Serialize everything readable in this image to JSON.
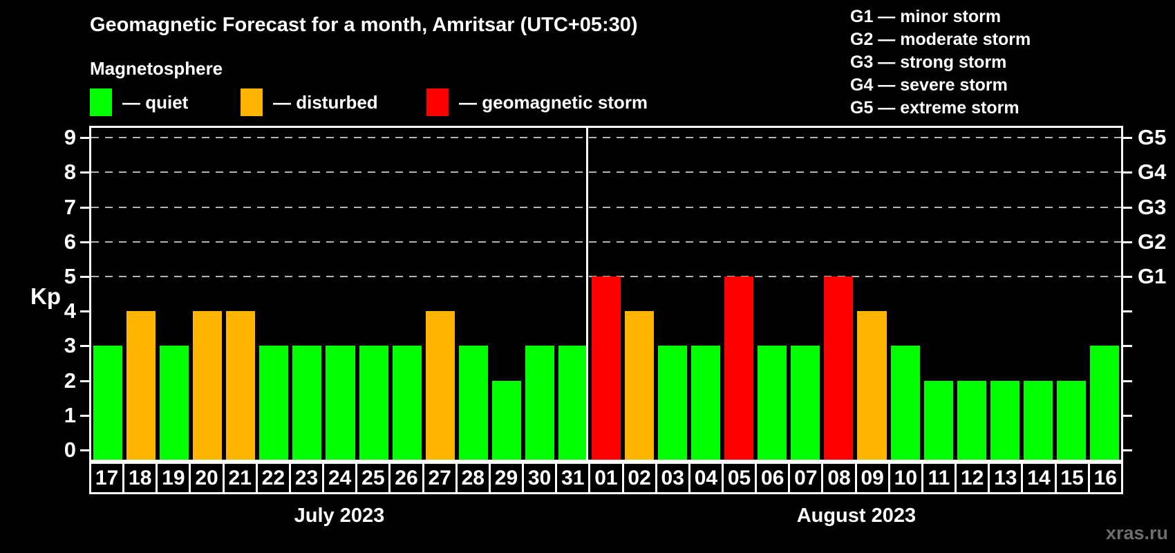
{
  "title": "Geomagnetic Forecast for a month, Amritsar (UTC+05:30)",
  "subtitle": "Magnetosphere",
  "watermark": "xras.ru",
  "legend": {
    "items": [
      {
        "key": "quiet",
        "label": "— quiet",
        "color": "#00ff00"
      },
      {
        "key": "disturbed",
        "label": "— disturbed",
        "color": "#ffb400"
      },
      {
        "key": "storm",
        "label": "— geomagnetic storm",
        "color": "#ff0000"
      }
    ]
  },
  "g_legend": {
    "lines": [
      "G1 — minor storm",
      "G2 — moderate storm",
      "G3 — strong storm",
      "G4 — severe storm",
      "G5 — extreme storm"
    ]
  },
  "chart_data": {
    "type": "bar",
    "title": "Geomagnetic Forecast for a month, Amritsar (UTC+05:30)",
    "ylabel": "Kp",
    "ylim": [
      0,
      9.35
    ],
    "yticks": [
      0,
      1,
      2,
      3,
      4,
      5,
      6,
      7,
      8,
      9
    ],
    "gridlines": [
      5,
      6,
      7,
      8,
      9
    ],
    "grid": "dashed horizontal at Kp 5-9",
    "legend_position": "top-left",
    "right_axis_labels": [
      {
        "kp": 5,
        "label": "G1"
      },
      {
        "kp": 6,
        "label": "G2"
      },
      {
        "kp": 7,
        "label": "G3"
      },
      {
        "kp": 8,
        "label": "G4"
      },
      {
        "kp": 9,
        "label": "G5"
      }
    ],
    "status_colors": {
      "quiet": "#00ff00",
      "disturbed": "#ffb400",
      "storm": "#ff0000"
    },
    "months": [
      {
        "label": "July 2023",
        "days": [
          {
            "date": "17",
            "kp": 3,
            "status": "quiet"
          },
          {
            "date": "18",
            "kp": 4,
            "status": "disturbed"
          },
          {
            "date": "19",
            "kp": 3,
            "status": "quiet"
          },
          {
            "date": "20",
            "kp": 4,
            "status": "disturbed"
          },
          {
            "date": "21",
            "kp": 4,
            "status": "disturbed"
          },
          {
            "date": "22",
            "kp": 3,
            "status": "quiet"
          },
          {
            "date": "23",
            "kp": 3,
            "status": "quiet"
          },
          {
            "date": "24",
            "kp": 3,
            "status": "quiet"
          },
          {
            "date": "25",
            "kp": 3,
            "status": "quiet"
          },
          {
            "date": "26",
            "kp": 3,
            "status": "quiet"
          },
          {
            "date": "27",
            "kp": 4,
            "status": "disturbed"
          },
          {
            "date": "28",
            "kp": 3,
            "status": "quiet"
          },
          {
            "date": "29",
            "kp": 2,
            "status": "quiet"
          },
          {
            "date": "30",
            "kp": 3,
            "status": "quiet"
          },
          {
            "date": "31",
            "kp": 3,
            "status": "quiet"
          }
        ]
      },
      {
        "label": "August 2023",
        "days": [
          {
            "date": "01",
            "kp": 5,
            "status": "storm"
          },
          {
            "date": "02",
            "kp": 4,
            "status": "disturbed"
          },
          {
            "date": "03",
            "kp": 3,
            "status": "quiet"
          },
          {
            "date": "04",
            "kp": 3,
            "status": "quiet"
          },
          {
            "date": "05",
            "kp": 5,
            "status": "storm"
          },
          {
            "date": "06",
            "kp": 3,
            "status": "quiet"
          },
          {
            "date": "07",
            "kp": 3,
            "status": "quiet"
          },
          {
            "date": "08",
            "kp": 5,
            "status": "storm"
          },
          {
            "date": "09",
            "kp": 4,
            "status": "disturbed"
          },
          {
            "date": "10",
            "kp": 3,
            "status": "quiet"
          },
          {
            "date": "11",
            "kp": 2,
            "status": "quiet"
          },
          {
            "date": "12",
            "kp": 2,
            "status": "quiet"
          },
          {
            "date": "13",
            "kp": 2,
            "status": "quiet"
          },
          {
            "date": "14",
            "kp": 2,
            "status": "quiet"
          },
          {
            "date": "15",
            "kp": 2,
            "status": "quiet"
          },
          {
            "date": "16",
            "kp": 3,
            "status": "quiet"
          }
        ]
      }
    ]
  }
}
